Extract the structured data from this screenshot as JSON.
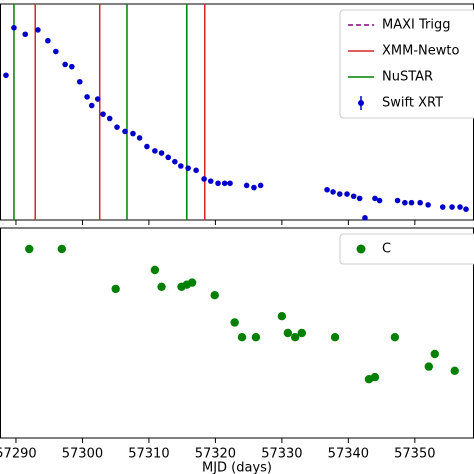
{
  "chart_data": [
    {
      "type": "scatter",
      "xlim": [
        57287.6,
        57358.9
      ],
      "ylim": [
        0,
        100
      ],
      "xticks": [
        57290,
        57300,
        57310,
        57320,
        57330,
        57340,
        57350
      ],
      "vlines": [
        {
          "name": "MAXI Trigg",
          "color": "#800080",
          "dash": true
        },
        {
          "name": "XMM-Newto",
          "color": "#d62728",
          "x": [
            57292.9,
            57302.6,
            57318.4
          ]
        },
        {
          "name": "NuSTAR",
          "color": "#008000",
          "x": [
            57289.7,
            57306.7,
            57315.7
          ]
        }
      ],
      "series": [
        {
          "name": "Swift XRT",
          "color": "#0000cc",
          "x": [
            57288.5,
            57289.7,
            57291.4,
            57293.3,
            57294.8,
            57296.0,
            57297.4,
            57298.4,
            57299.6,
            57300.7,
            57302.3,
            57301.4,
            57303.1,
            57304.1,
            57305.2,
            57306.4,
            57307.6,
            57308.6,
            57309.7,
            57310.9,
            57311.9,
            57312.9,
            57313.9,
            57314.8,
            57315.9,
            57317.1,
            57318.3,
            57319.3,
            57320.4,
            57321.4,
            57322.2,
            57324.7,
            57325.8,
            57326.8,
            57336.8,
            57337.7,
            57338.7,
            57339.8,
            57340.8,
            57341.7,
            57342.5,
            57344.0,
            57344.7,
            57347.4,
            57348.5,
            57349.5,
            57350.8,
            57352.0,
            57354.2,
            57355.6,
            57356.8,
            57357.7
          ],
          "values": [
            67,
            89,
            86,
            88,
            83,
            78,
            72,
            71,
            64,
            57,
            56,
            53,
            49,
            47,
            43,
            41,
            40,
            38,
            34,
            32,
            31,
            29,
            27,
            25,
            24,
            23,
            19,
            18,
            17,
            17,
            17,
            16,
            15,
            16,
            14,
            13,
            12,
            12,
            11,
            10,
            1,
            10,
            9,
            9,
            8,
            8,
            8,
            7,
            6,
            6,
            6,
            5
          ]
        }
      ]
    },
    {
      "type": "scatter",
      "xlabel": "MJD (days)",
      "xlim": [
        57287.6,
        57358.9
      ],
      "ylim": [
        0,
        100
      ],
      "xticks": [
        57290,
        57300,
        57310,
        57320,
        57330,
        57340,
        57350
      ],
      "series": [
        {
          "name": "C",
          "color": "#008000",
          "x": [
            57292.0,
            57296.9,
            57305.0,
            57310.9,
            57311.9,
            57314.9,
            57315.7,
            57316.5,
            57319.9,
            57322.9,
            57324.0,
            57326.1,
            57330.0,
            57330.9,
            57332.0,
            57333.0,
            57338.0,
            57343.1,
            57344.0,
            57347.0,
            57352.1,
            57353.0,
            57356.0
          ],
          "values": [
            90,
            90,
            71,
            80,
            72,
            72,
            73,
            74,
            68,
            55,
            48,
            48,
            58,
            50,
            48,
            50,
            48,
            28,
            29,
            48,
            34,
            40,
            32
          ]
        }
      ]
    }
  ]
}
